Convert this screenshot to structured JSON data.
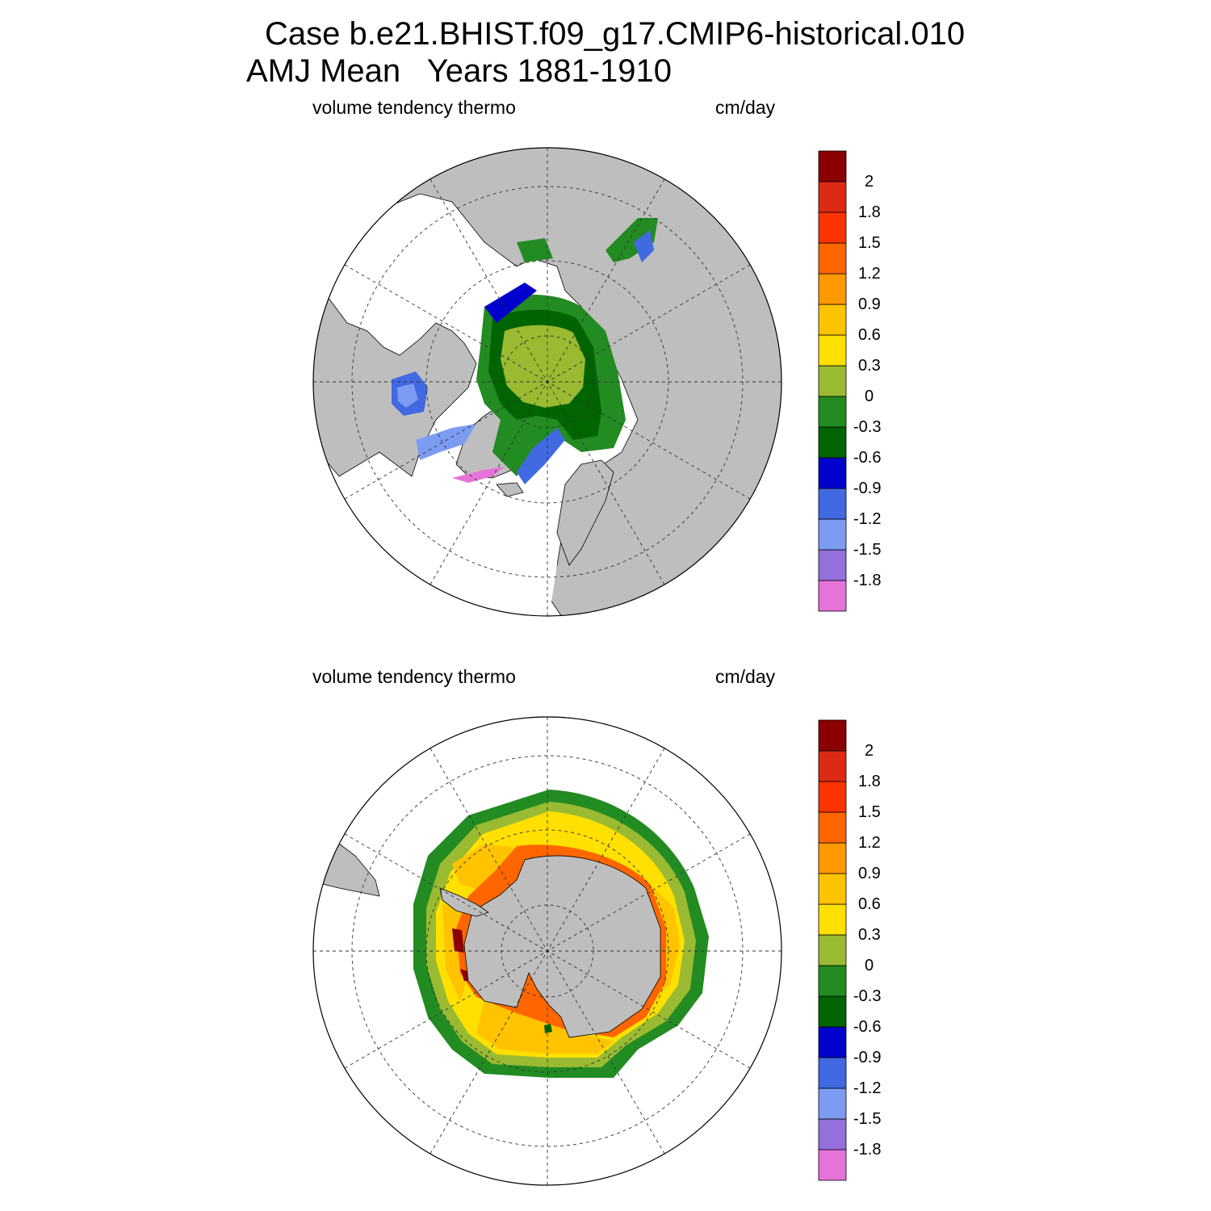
{
  "title": {
    "line1": "Case b.e21.BHIST.f09_g17.CMIP6-historical.010",
    "line2": "AMJ Mean   Years 1881-1910"
  },
  "colors": {
    "land": "#bebebe",
    "levels": [
      "#e673d9",
      "#9370db",
      "#7b9cf2",
      "#4169e1",
      "#0000cd",
      "#006400",
      "#228b22",
      "#9aba32",
      "#ffe000",
      "#ffc300",
      "#ff9900",
      "#ff6600",
      "#ff3300",
      "#dc2b12",
      "#8b0000"
    ]
  },
  "panels": [
    {
      "id": "north",
      "left_label": "volume tendency thermo",
      "right_label": "cm/day",
      "colorbar": {
        "labels": [
          "2",
          "1.8",
          "1.5",
          "1.2",
          "0.9",
          "0.6",
          "0.3",
          "0",
          "-0.3",
          "-0.6",
          "-0.9",
          "-1.2",
          "-1.5",
          "-1.8"
        ]
      }
    },
    {
      "id": "south",
      "left_label": "volume tendency thermo",
      "right_label": "cm/day",
      "colorbar": {
        "labels": [
          "2",
          "1.8",
          "1.5",
          "1.2",
          "0.9",
          "0.6",
          "0.3",
          "0",
          "-0.3",
          "-0.6",
          "-0.9",
          "-1.2",
          "-1.5",
          "-1.8"
        ]
      }
    }
  ]
}
